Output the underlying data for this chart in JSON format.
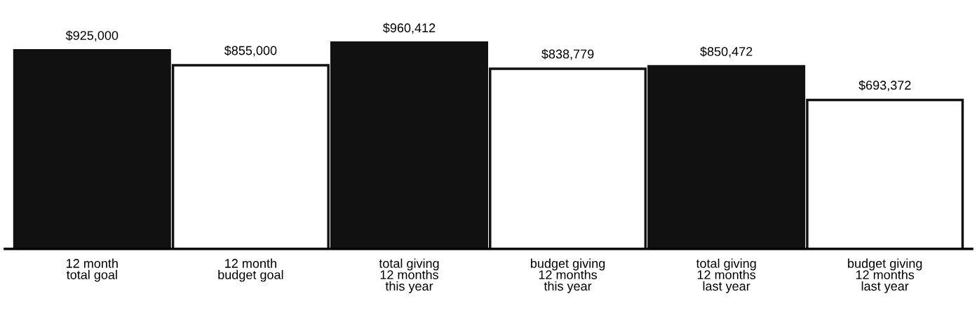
{
  "chart_data": {
    "type": "bar",
    "categories": [
      "12 month\ntotal goal",
      "12 month\nbudget goal",
      "total giving\n12 months\nthis year",
      "budget giving\n12 months\nthis year",
      "total giving\n12 months\nlast year",
      "budget giving\n12 months\nlast year"
    ],
    "values": [
      925000,
      855000,
      960412,
      838779,
      850472,
      693372
    ],
    "colors": [
      "#111111",
      "#ffffff",
      "#111111",
      "#ffffff",
      "#111111",
      "#ffffff"
    ],
    "value_labels": [
      "$925,000",
      "$855,000",
      "$960,412",
      "$838,779",
      "$850,472",
      "$693,372"
    ],
    "grid": false,
    "legend": false
  }
}
